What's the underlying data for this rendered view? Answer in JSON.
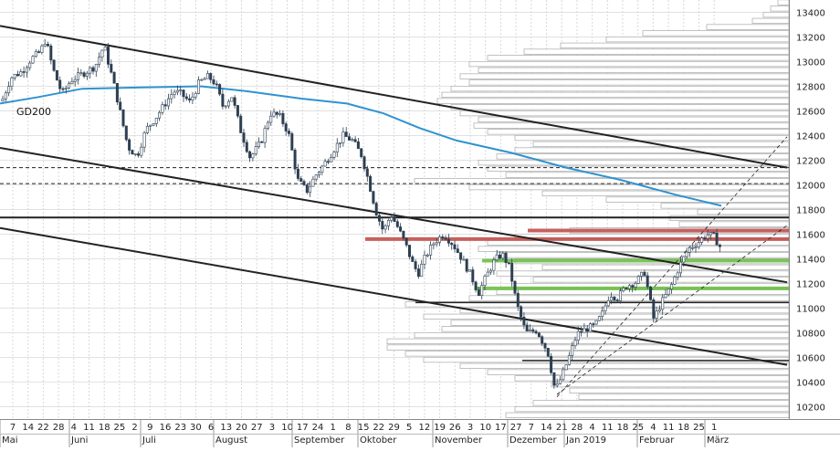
{
  "chart_data": {
    "type": "candlestick",
    "title": "",
    "ylim": [
      10100,
      13500
    ],
    "y_ticks": [
      10200,
      10400,
      10600,
      10800,
      11000,
      11200,
      11400,
      11600,
      11800,
      12000,
      12200,
      12400,
      12600,
      12800,
      13000,
      13200,
      13400
    ],
    "y_tick_labels": [
      "10200",
      "10400",
      "10600",
      "10800",
      "11000",
      "11200",
      "11400",
      "11600",
      "11800",
      "12000",
      "12200",
      "12400",
      "12600",
      "12800",
      "13000",
      "13200",
      "13400"
    ],
    "x_day_labels": [
      "7",
      "14",
      "22",
      "28",
      "4",
      "11",
      "18",
      "25",
      "2",
      "9",
      "16",
      "23",
      "30",
      "6",
      "13",
      "20",
      "27",
      "3",
      "10",
      "17",
      "24",
      "1",
      "8",
      "15",
      "22",
      "29",
      "5",
      "12",
      "19",
      "26",
      "3",
      "10",
      "17",
      "27",
      "7",
      "14",
      "21",
      "28",
      "4",
      "11",
      "18",
      "25",
      "4",
      "11",
      "18",
      "25",
      "1"
    ],
    "x_month_labels": [
      "Mai",
      "Juni",
      "Juli",
      "August",
      "September",
      "Oktober",
      "November",
      "Dezember",
      "Jan 2019",
      "Februar",
      "März"
    ],
    "annotations": [
      {
        "text": "GD200"
      }
    ],
    "moving_average": {
      "name": "GD200",
      "color": "#2f93d0",
      "points": [
        [
          0,
          12660
        ],
        [
          40,
          12710
        ],
        [
          90,
          12780
        ],
        [
          150,
          12790
        ],
        [
          220,
          12800
        ],
        [
          270,
          12760
        ],
        [
          330,
          12700
        ],
        [
          380,
          12660
        ],
        [
          420,
          12580
        ],
        [
          460,
          12460
        ],
        [
          500,
          12360
        ],
        [
          560,
          12260
        ],
        [
          620,
          12140
        ],
        [
          680,
          12040
        ],
        [
          740,
          11920
        ],
        [
          790,
          11830
        ]
      ]
    },
    "price_path": [
      [
        2,
        12680
      ],
      [
        12,
        12870
      ],
      [
        24,
        12920
      ],
      [
        34,
        13020
      ],
      [
        44,
        13080
      ],
      [
        50,
        13180
      ],
      [
        58,
        12940
      ],
      [
        68,
        12740
      ],
      [
        78,
        12850
      ],
      [
        90,
        12900
      ],
      [
        104,
        12960
      ],
      [
        114,
        13130
      ],
      [
        124,
        12840
      ],
      [
        132,
        12580
      ],
      [
        140,
        12310
      ],
      [
        150,
        12230
      ],
      [
        160,
        12450
      ],
      [
        170,
        12540
      ],
      [
        180,
        12650
      ],
      [
        190,
        12760
      ],
      [
        198,
        12740
      ],
      [
        208,
        12670
      ],
      [
        218,
        12830
      ],
      [
        228,
        12880
      ],
      [
        236,
        12820
      ],
      [
        244,
        12640
      ],
      [
        254,
        12720
      ],
      [
        264,
        12430
      ],
      [
        274,
        12220
      ],
      [
        286,
        12350
      ],
      [
        296,
        12580
      ],
      [
        306,
        12560
      ],
      [
        316,
        12420
      ],
      [
        326,
        12040
      ],
      [
        336,
        11950
      ],
      [
        346,
        12080
      ],
      [
        356,
        12180
      ],
      [
        366,
        12290
      ],
      [
        376,
        12400
      ],
      [
        386,
        12360
      ],
      [
        396,
        12240
      ],
      [
        404,
        12020
      ],
      [
        412,
        11780
      ],
      [
        420,
        11620
      ],
      [
        428,
        11760
      ],
      [
        436,
        11650
      ],
      [
        444,
        11520
      ],
      [
        452,
        11360
      ],
      [
        458,
        11280
      ],
      [
        466,
        11420
      ],
      [
        476,
        11540
      ],
      [
        486,
        11600
      ],
      [
        496,
        11520
      ],
      [
        506,
        11400
      ],
      [
        516,
        11260
      ],
      [
        524,
        11120
      ],
      [
        532,
        11250
      ],
      [
        542,
        11390
      ],
      [
        550,
        11440
      ],
      [
        558,
        11330
      ],
      [
        566,
        11030
      ],
      [
        576,
        10800
      ],
      [
        588,
        10820
      ],
      [
        600,
        10640
      ],
      [
        608,
        10330
      ],
      [
        616,
        10460
      ],
      [
        624,
        10620
      ],
      [
        632,
        10790
      ],
      [
        642,
        10830
      ],
      [
        652,
        10860
      ],
      [
        660,
        10960
      ],
      [
        668,
        11120
      ],
      [
        676,
        11080
      ],
      [
        686,
        11180
      ],
      [
        696,
        11210
      ],
      [
        706,
        11290
      ],
      [
        716,
        10910
      ],
      [
        724,
        11040
      ],
      [
        734,
        11160
      ],
      [
        744,
        11340
      ],
      [
        754,
        11480
      ],
      [
        764,
        11530
      ],
      [
        774,
        11600
      ],
      [
        782,
        11580
      ],
      [
        790,
        11480
      ]
    ],
    "horizontal_lines": [
      {
        "level": 11735,
        "style": "solid",
        "color": "#222222"
      },
      {
        "level": 12140,
        "style": "dashed",
        "color": "#222222"
      },
      {
        "level": 12010,
        "style": "dashed",
        "color": "#222222"
      },
      {
        "level": 11045,
        "style": "solid",
        "color": "#222222"
      },
      {
        "level": 10575,
        "style": "solid",
        "color": "#222222"
      },
      {
        "level": 11630,
        "style": "band",
        "color": "#c0504d"
      },
      {
        "level": 11560,
        "style": "band",
        "color": "#c0504d"
      },
      {
        "level": 11385,
        "style": "band",
        "color": "#6abf45"
      },
      {
        "level": 11160,
        "style": "band",
        "color": "#6abf45"
      }
    ],
    "trend_lines": [
      {
        "style": "solid",
        "points": [
          [
            0,
            13290
          ],
          [
            862,
            12140
          ]
        ]
      },
      {
        "style": "solid",
        "points": [
          [
            0,
            12300
          ],
          [
            862,
            11210
          ]
        ]
      },
      {
        "style": "solid",
        "points": [
          [
            0,
            11650
          ],
          [
            862,
            10540
          ]
        ]
      },
      {
        "style": "dashed",
        "points": [
          [
            610,
            10300
          ],
          [
            862,
            11670
          ]
        ]
      },
      {
        "style": "dashed",
        "points": [
          [
            610,
            10280
          ],
          [
            862,
            12390
          ]
        ]
      }
    ],
    "volume_profile": [
      [
        13480,
        12
      ],
      [
        13430,
        20
      ],
      [
        13380,
        28
      ],
      [
        13330,
        40
      ],
      [
        13280,
        90
      ],
      [
        13230,
        160
      ],
      [
        13180,
        200
      ],
      [
        13130,
        250
      ],
      [
        13080,
        290
      ],
      [
        13030,
        330
      ],
      [
        12980,
        350
      ],
      [
        12930,
        340
      ],
      [
        12880,
        360
      ],
      [
        12830,
        350
      ],
      [
        12780,
        370
      ],
      [
        12730,
        380
      ],
      [
        12680,
        385
      ],
      [
        12630,
        370
      ],
      [
        12580,
        360
      ],
      [
        12530,
        340
      ],
      [
        12480,
        345
      ],
      [
        12430,
        330
      ],
      [
        12380,
        300
      ],
      [
        12330,
        280
      ],
      [
        12280,
        300
      ],
      [
        12230,
        320
      ],
      [
        12180,
        340
      ],
      [
        12130,
        330
      ],
      [
        12080,
        310
      ],
      [
        12030,
        410
      ],
      [
        11980,
        350
      ],
      [
        11930,
        270
      ],
      [
        11880,
        200
      ],
      [
        11830,
        140
      ],
      [
        11780,
        100
      ],
      [
        11730,
        130
      ],
      [
        11680,
        120
      ],
      [
        11630,
        240
      ],
      [
        11580,
        300
      ],
      [
        11530,
        330
      ],
      [
        11480,
        340
      ],
      [
        11430,
        320
      ],
      [
        11380,
        300
      ],
      [
        11330,
        270
      ],
      [
        11280,
        320
      ],
      [
        11230,
        280
      ],
      [
        11180,
        300
      ],
      [
        11130,
        320
      ],
      [
        11080,
        350
      ],
      [
        11030,
        420
      ],
      [
        10980,
        360
      ],
      [
        10930,
        400
      ],
      [
        10880,
        370
      ],
      [
        10830,
        380
      ],
      [
        10780,
        410
      ],
      [
        10730,
        440
      ],
      [
        10680,
        440
      ],
      [
        10630,
        420
      ],
      [
        10580,
        400
      ],
      [
        10530,
        360
      ],
      [
        10480,
        330
      ],
      [
        10430,
        300
      ],
      [
        10380,
        260
      ],
      [
        10330,
        240
      ],
      [
        10280,
        230
      ],
      [
        10230,
        280
      ],
      [
        10180,
        300
      ],
      [
        10130,
        310
      ]
    ]
  }
}
